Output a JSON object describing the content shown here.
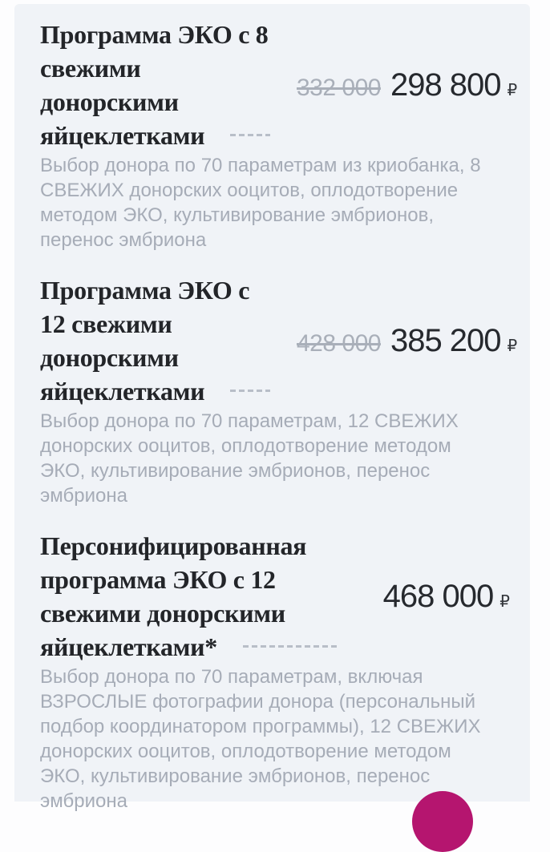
{
  "panel": {
    "background": "#f0f3f7"
  },
  "price_list": {
    "items": [
      {
        "title_lines": [
          "Программа ЭКО с 8",
          "свежими",
          "донорскими",
          "яйцеклетками"
        ],
        "old_price": "332 000",
        "price": "298 800",
        "currency": "₽",
        "description_lines": [
          "Выбор донора по 70 параметрам из криобанка, 8",
          "СВЕЖИХ донорских ооцитов, оплодотворение",
          "методом ЭКО, культивирование эмбрионов,",
          "перенос эмбриона"
        ]
      },
      {
        "title_lines": [
          "Программа ЭКО с",
          "12 свежими",
          "донорскими",
          "яйцеклетками"
        ],
        "old_price": "428 000",
        "price": "385 200",
        "currency": "₽",
        "description_lines": [
          "Выбор донора по 70 параметрам, 12 СВЕЖИХ",
          "донорских ооцитов, оплодотворение методом",
          "ЭКО, культивирование эмбрионов, перенос",
          "эмбриона"
        ]
      },
      {
        "title_lines": [
          "Персонифицированная",
          "программа ЭКО с 12",
          "свежими донорскими",
          "яйцеклетками*"
        ],
        "price": "468 000",
        "currency": "₽",
        "description_lines": [
          "Выбор донора по 70 параметрам, включая",
          "ВЗРОСЛЫЕ фотографии донора (персональный",
          "подбор координатором программы), 12 СВЕЖИХ",
          "донорских ооцитов, оплодотворение методом",
          "ЭКО, культивирование эмбрионов, перенос",
          "эмбриона"
        ]
      }
    ]
  },
  "fab": {
    "color": "#b5156f"
  }
}
